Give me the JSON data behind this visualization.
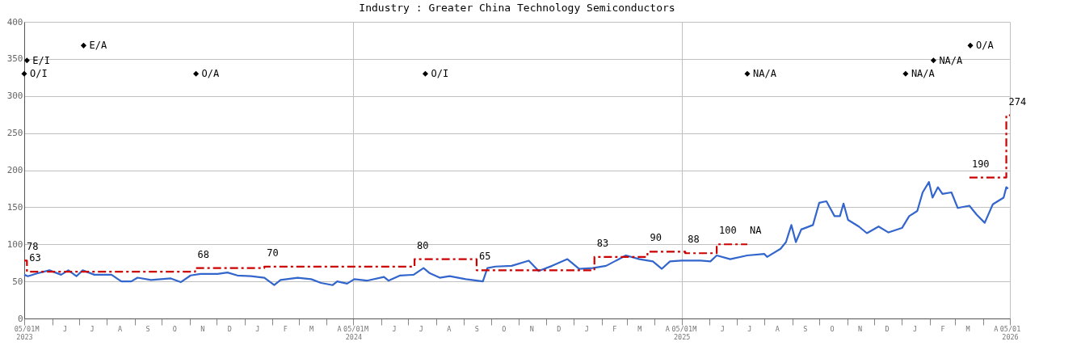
{
  "chart_data": {
    "type": "line",
    "title": "Industry : Greater China Technology Semiconductors",
    "xlim": [
      "2023-05-01",
      "2026-05-01"
    ],
    "xticks": [
      {
        "value": "2023-05-01",
        "label": "05/01\n2023"
      },
      {
        "value": "2023-05-15",
        "label": "M"
      },
      {
        "value": "2023-06-01",
        "label": null
      },
      {
        "value": "2023-06-15",
        "label": "J"
      },
      {
        "value": "2023-07-01",
        "label": null
      },
      {
        "value": "2023-07-15",
        "label": "J"
      },
      {
        "value": "2023-08-01",
        "label": null
      },
      {
        "value": "2023-08-15",
        "label": "A"
      },
      {
        "value": "2023-09-01",
        "label": null
      },
      {
        "value": "2023-09-15",
        "label": "S"
      },
      {
        "value": "2023-10-01",
        "label": null
      },
      {
        "value": "2023-10-15",
        "label": "O"
      },
      {
        "value": "2023-11-01",
        "label": null
      },
      {
        "value": "2023-11-15",
        "label": "N"
      },
      {
        "value": "2023-12-01",
        "label": null
      },
      {
        "value": "2023-12-15",
        "label": "D"
      },
      {
        "value": "2024-01-01",
        "label": null
      },
      {
        "value": "2024-01-15",
        "label": "J"
      },
      {
        "value": "2024-02-01",
        "label": null
      },
      {
        "value": "2024-02-15",
        "label": "F"
      },
      {
        "value": "2024-03-01",
        "label": null
      },
      {
        "value": "2024-03-15",
        "label": "M"
      },
      {
        "value": "2024-04-01",
        "label": null
      },
      {
        "value": "2024-04-15",
        "label": "A"
      },
      {
        "value": "2024-05-01",
        "label": "05/01\n2024"
      },
      {
        "value": "2024-05-15",
        "label": "M"
      },
      {
        "value": "2024-06-01",
        "label": null
      },
      {
        "value": "2024-06-15",
        "label": "J"
      },
      {
        "value": "2024-07-01",
        "label": null
      },
      {
        "value": "2024-07-15",
        "label": "J"
      },
      {
        "value": "2024-08-01",
        "label": null
      },
      {
        "value": "2024-08-15",
        "label": "A"
      },
      {
        "value": "2024-09-01",
        "label": null
      },
      {
        "value": "2024-09-15",
        "label": "S"
      },
      {
        "value": "2024-10-01",
        "label": null
      },
      {
        "value": "2024-10-15",
        "label": "O"
      },
      {
        "value": "2024-11-01",
        "label": null
      },
      {
        "value": "2024-11-15",
        "label": "N"
      },
      {
        "value": "2024-12-01",
        "label": null
      },
      {
        "value": "2024-12-15",
        "label": "D"
      },
      {
        "value": "2025-01-01",
        "label": null
      },
      {
        "value": "2025-01-15",
        "label": "J"
      },
      {
        "value": "2025-02-01",
        "label": null
      },
      {
        "value": "2025-02-15",
        "label": "F"
      },
      {
        "value": "2025-03-01",
        "label": null
      },
      {
        "value": "2025-03-15",
        "label": "M"
      },
      {
        "value": "2025-04-01",
        "label": null
      },
      {
        "value": "2025-04-15",
        "label": "A"
      },
      {
        "value": "2025-05-01",
        "label": "05/01\n2025"
      },
      {
        "value": "2025-05-15",
        "label": "M"
      },
      {
        "value": "2025-06-01",
        "label": null
      },
      {
        "value": "2025-06-15",
        "label": "J"
      },
      {
        "value": "2025-07-01",
        "label": null
      },
      {
        "value": "2025-07-15",
        "label": "J"
      },
      {
        "value": "2025-08-01",
        "label": null
      },
      {
        "value": "2025-08-15",
        "label": "A"
      },
      {
        "value": "2025-09-01",
        "label": null
      },
      {
        "value": "2025-09-15",
        "label": "S"
      },
      {
        "value": "2025-10-01",
        "label": null
      },
      {
        "value": "2025-10-15",
        "label": "O"
      },
      {
        "value": "2025-11-01",
        "label": null
      },
      {
        "value": "2025-11-15",
        "label": "N"
      },
      {
        "value": "2025-12-01",
        "label": null
      },
      {
        "value": "2025-12-15",
        "label": "D"
      },
      {
        "value": "2026-01-01",
        "label": null
      },
      {
        "value": "2026-01-15",
        "label": "J"
      },
      {
        "value": "2026-02-01",
        "label": null
      },
      {
        "value": "2026-02-15",
        "label": "F"
      },
      {
        "value": "2026-03-01",
        "label": null
      },
      {
        "value": "2026-03-15",
        "label": "M"
      },
      {
        "value": "2026-04-01",
        "label": null
      },
      {
        "value": "2026-04-15",
        "label": "A"
      },
      {
        "value": "2026-05-01",
        "label": "05/01\n2026"
      }
    ],
    "ylim": [
      0,
      400
    ],
    "yticks": [
      0,
      50,
      100,
      150,
      200,
      250,
      300,
      350,
      400
    ],
    "grid": true,
    "series": [
      {
        "type": "line",
        "color": "#3366cc",
        "x": [
          "2023-05-01",
          "2023-05-05",
          "2023-05-16",
          "2023-05-29",
          "2023-06-11",
          "2023-06-19",
          "2023-06-28",
          "2023-07-05",
          "2023-07-18",
          "2023-08-06",
          "2023-08-17",
          "2023-08-28",
          "2023-09-04",
          "2023-09-19",
          "2023-10-11",
          "2023-10-22",
          "2023-11-02",
          "2023-11-13",
          "2023-12-02",
          "2023-12-13",
          "2023-12-24",
          "2024-01-08",
          "2024-01-23",
          "2024-02-03",
          "2024-02-10",
          "2024-02-29",
          "2024-03-15",
          "2024-03-26",
          "2024-04-08",
          "2024-04-13",
          "2024-04-24",
          "2024-05-02",
          "2024-05-16",
          "2024-06-04",
          "2024-06-09",
          "2024-06-22",
          "2024-07-07",
          "2024-07-18",
          "2024-07-25",
          "2024-08-05",
          "2024-08-16",
          "2024-09-03",
          "2024-09-22",
          "2024-09-27",
          "2024-10-06",
          "2024-10-24",
          "2024-11-12",
          "2024-11-23",
          "2024-12-08",
          "2024-12-25",
          "2025-01-07",
          "2025-01-22",
          "2025-02-06",
          "2025-02-28",
          "2025-03-15",
          "2025-03-30",
          "2025-04-09",
          "2025-04-18",
          "2025-05-01",
          "2025-05-22",
          "2025-06-02",
          "2025-06-09",
          "2025-06-24",
          "2025-07-13",
          "2025-08-01",
          "2025-08-04",
          "2025-08-19",
          "2025-08-25",
          "2025-08-31",
          "2025-09-05",
          "2025-09-11",
          "2025-09-24",
          "2025-10-01",
          "2025-10-09",
          "2025-10-18",
          "2025-10-24",
          "2025-10-28",
          "2025-11-02",
          "2025-11-14",
          "2025-11-23",
          "2025-12-06",
          "2025-12-17",
          "2026-01-01",
          "2026-01-09",
          "2026-01-18",
          "2026-01-24",
          "2026-01-31",
          "2026-02-04",
          "2026-02-10",
          "2026-02-15",
          "2026-02-25",
          "2026-03-04",
          "2026-03-17",
          "2026-03-25",
          "2026-04-03",
          "2026-04-12",
          "2026-04-24",
          "2026-04-27",
          "2026-04-29"
        ],
        "values": [
          59,
          57,
          61,
          65,
          59,
          65,
          57,
          65,
          59,
          59,
          50,
          50,
          55,
          52,
          54,
          49,
          58,
          60,
          60,
          62,
          58,
          57,
          55,
          45,
          52,
          55,
          53,
          48,
          45,
          50,
          47,
          53,
          51,
          56,
          51,
          58,
          59,
          68,
          61,
          55,
          57,
          53,
          50,
          68,
          70,
          71,
          78,
          64,
          71,
          80,
          67,
          68,
          71,
          85,
          80,
          77,
          67,
          77,
          78,
          78,
          77,
          85,
          80,
          85,
          87,
          83,
          94,
          103,
          126,
          103,
          120,
          126,
          156,
          158,
          138,
          138,
          155,
          133,
          124,
          115,
          124,
          116,
          122,
          138,
          145,
          170,
          184,
          163,
          177,
          168,
          170,
          149,
          152,
          140,
          129,
          154,
          163,
          177,
          175
        ]
      },
      {
        "type": "step",
        "color": "#cc0000",
        "line_style": "dashed",
        "x": [
          "2023-05-01",
          "2023-05-04",
          "2023-11-07",
          "2024-01-23",
          "2024-07-08",
          "2024-09-15",
          "2025-01-24",
          "2025-03-24",
          "2025-05-05",
          "2025-06-09",
          "2025-07-13",
          "2025-07-14",
          "2026-03-17",
          "2026-04-27",
          "2026-05-01"
        ],
        "values": [
          78,
          63,
          68,
          70,
          80,
          65,
          83,
          90,
          88,
          100,
          100,
          null,
          190,
          274,
          274
        ],
        "value_labels": [
          "78",
          "63",
          "68",
          "70",
          "80",
          "65",
          "83",
          "90",
          "88",
          "100",
          "NA",
          null,
          "190",
          "274",
          null
        ]
      },
      {
        "type": "scatter",
        "color": "#000000",
        "marker": "diamond",
        "x": [
          "2023-05-01",
          "2023-05-04",
          "2023-07-06",
          "2023-11-08",
          "2024-07-20",
          "2025-07-13",
          "2026-01-05",
          "2026-02-05",
          "2026-03-18"
        ],
        "values": [
          330,
          348,
          368,
          330,
          330,
          330,
          330,
          348,
          368
        ],
        "value_labels": [
          "O/I",
          "E/I",
          "E/A",
          "O/A",
          "O/I",
          "NA/A",
          "NA/A",
          "NA/A",
          "O/A"
        ]
      }
    ]
  }
}
